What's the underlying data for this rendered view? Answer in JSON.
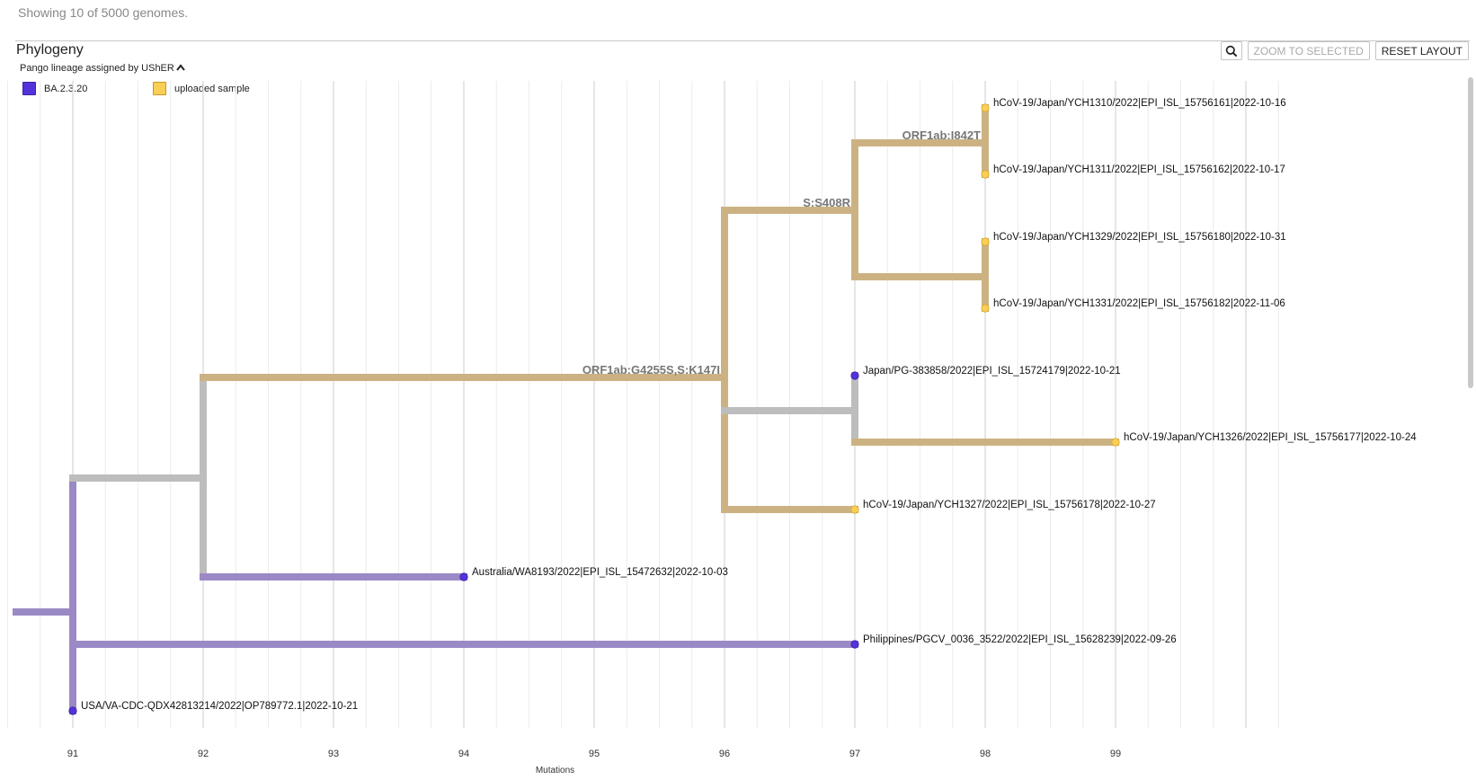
{
  "status_text": "Showing 10 of 5000 genomes.",
  "panel": {
    "title": "Phylogeny",
    "zoom_to_selected": "ZOOM TO SELECTED",
    "reset_layout": "RESET LAYOUT"
  },
  "legend": {
    "title": "Pango lineage assigned by UShER",
    "items": [
      {
        "label": "BA.2.3.20",
        "color": "#5533d9",
        "border": "#3a22a8"
      },
      {
        "label": "uploaded sample",
        "color": "#f9cf55",
        "border": "#c69a22"
      }
    ]
  },
  "colors": {
    "purple_branch": "#9b89c6",
    "grey_branch": "#bdbdbd",
    "tan_branch": "#ccb283",
    "purple_tip": "#5533d9",
    "yellow_tip": "#f9cf55",
    "grid_major": "#d9d9d9",
    "grid_minor": "#ececec",
    "mutation_label": "#777777"
  },
  "chart_data": {
    "type": "phylogenetic_tree",
    "axis_label": "Mutations",
    "x_ticks": [
      91,
      92,
      93,
      94,
      95,
      96,
      97,
      98,
      99
    ],
    "xlim": [
      90.5,
      100.4
    ],
    "tips": [
      {
        "name": "hCoV-19/Japan/YCH1310/2022|EPI_ISL_15756161|2022-10-16",
        "x": 98,
        "lineage": "uploaded sample"
      },
      {
        "name": "hCoV-19/Japan/YCH1311/2022|EPI_ISL_15756162|2022-10-17",
        "x": 98,
        "lineage": "uploaded sample"
      },
      {
        "name": "hCoV-19/Japan/YCH1329/2022|EPI_ISL_15756180|2022-10-31",
        "x": 98,
        "lineage": "uploaded sample"
      },
      {
        "name": "hCoV-19/Japan/YCH1331/2022|EPI_ISL_15756182|2022-11-06",
        "x": 98,
        "lineage": "uploaded sample"
      },
      {
        "name": "Japan/PG-383858/2022|EPI_ISL_15724179|2022-10-21",
        "x": 97,
        "lineage": "BA.2.3.20"
      },
      {
        "name": "hCoV-19/Japan/YCH1326/2022|EPI_ISL_15756177|2022-10-24",
        "x": 99,
        "lineage": "uploaded sample"
      },
      {
        "name": "hCoV-19/Japan/YCH1327/2022|EPI_ISL_15756178|2022-10-27",
        "x": 97,
        "lineage": "uploaded sample"
      },
      {
        "name": "Australia/WA8193/2022|EPI_ISL_15472632|2022-10-03",
        "x": 94,
        "lineage": "BA.2.3.20"
      },
      {
        "name": "Philippines/PGCV_0036_3522/2022|EPI_ISL_15628239|2022-09-26",
        "x": 97,
        "lineage": "BA.2.3.20"
      },
      {
        "name": "USA/VA-CDC-QDX42813214/2022|OP789772.1|2022-10-21",
        "x": 91,
        "lineage": "BA.2.3.20"
      }
    ],
    "mutation_labels": [
      {
        "text": "ORF1ab:I842T",
        "x": 98
      },
      {
        "text": "S:S408R",
        "x": 97
      },
      {
        "text": "ORF1ab:G4255S,S:K147I",
        "x": 96
      }
    ]
  }
}
